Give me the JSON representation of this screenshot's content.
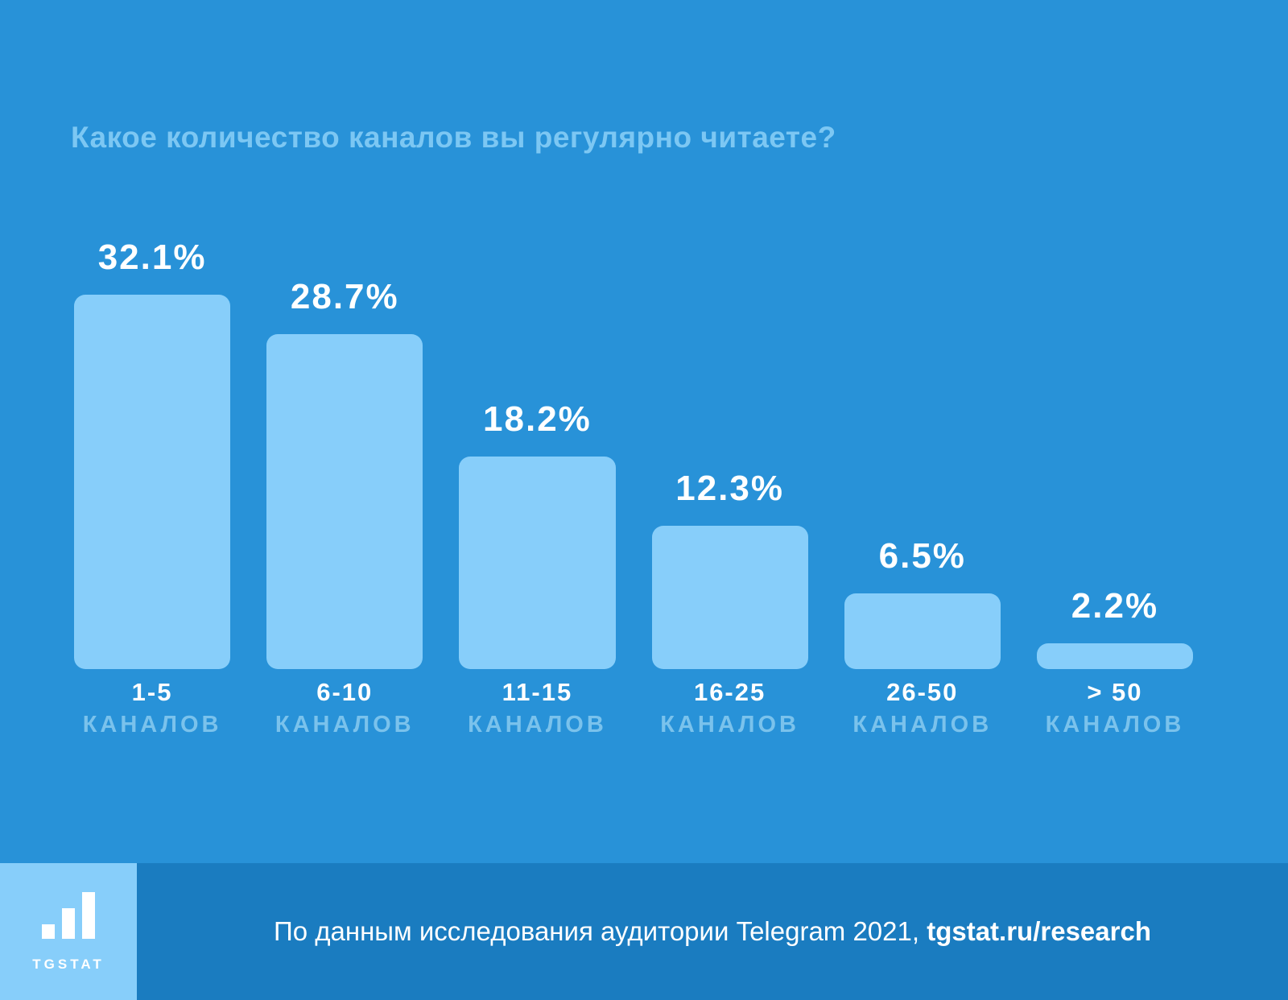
{
  "page": {
    "background_color": "#2892D8"
  },
  "chart_data": {
    "type": "bar",
    "title": "Какое количество каналов вы регулярно читаете?",
    "categories": [
      "1-5",
      "6-10",
      "11-15",
      "16-25",
      "26-50",
      "> 50"
    ],
    "category_unit": "КАНАЛОВ",
    "values": [
      32.1,
      28.7,
      18.2,
      12.3,
      6.5,
      2.2
    ],
    "value_labels": [
      "32.1%",
      "28.7%",
      "18.2%",
      "12.3%",
      "6.5%",
      "2.2%"
    ],
    "ylim": [
      0,
      35
    ],
    "grid": false,
    "legend_position": "none",
    "bar_color": "#87CEFA",
    "value_label_color": "#FFFFFF",
    "category_color": "#FFFFFF",
    "category_unit_color": "#7AC2EC",
    "title_color": "#7CC7F3"
  },
  "footer": {
    "caption_regular": "По данным исследования аудитории Telegram 2021, ",
    "caption_bold": "tgstat.ru/research",
    "logo_text": "TGSTAT",
    "band_color": "#1A7CC0",
    "logo_background": "#87CEFA",
    "logo_icon": "bar-chart-icon"
  }
}
